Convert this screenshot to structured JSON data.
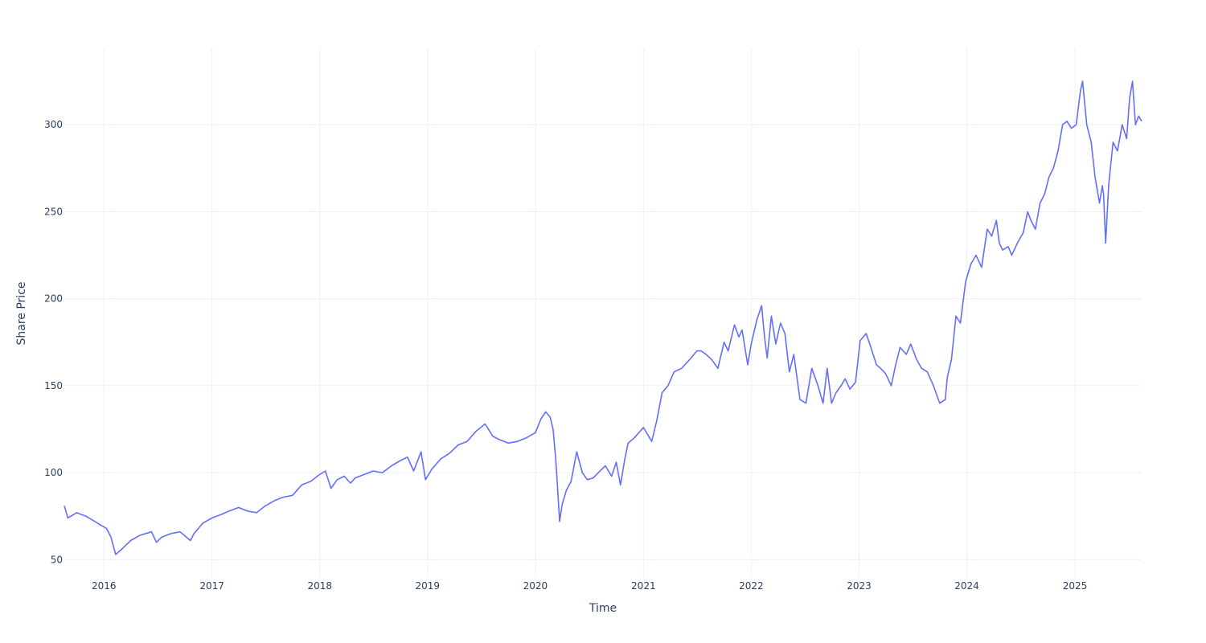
{
  "chart_data": {
    "type": "line",
    "title": "",
    "xlabel": "Time",
    "ylabel": "Share Price",
    "x_ticks": [
      "2016",
      "2017",
      "2018",
      "2019",
      "2020",
      "2021",
      "2022",
      "2023",
      "2024",
      "2025"
    ],
    "y_ticks": [
      "50",
      "100",
      "150",
      "200",
      "250",
      "300"
    ],
    "xlim": [
      "2015-08-20",
      "2025-08-15"
    ],
    "ylim": [
      40,
      344
    ],
    "grid": true,
    "legend": "none",
    "line_color": "#636efa",
    "grid_color": "#ebf0f8",
    "text_color": "#2a3f5f",
    "series": [
      {
        "x": [
          "2015-08-20",
          "2015-09-01",
          "2015-10-01",
          "2015-11-01",
          "2015-12-01",
          "2015-12-20",
          "2016-01-10",
          "2016-01-25",
          "2016-02-10",
          "2016-03-01",
          "2016-04-01",
          "2016-05-01",
          "2016-06-10",
          "2016-06-27",
          "2016-07-15",
          "2016-08-15",
          "2016-09-15",
          "2016-10-20",
          "2016-11-01",
          "2016-12-01",
          "2017-01-01",
          "2017-02-01",
          "2017-03-01",
          "2017-04-01",
          "2017-05-01",
          "2017-06-01",
          "2017-07-01",
          "2017-08-01",
          "2017-09-01",
          "2017-10-01",
          "2017-11-01",
          "2017-12-01",
          "2018-01-01",
          "2018-01-20",
          "2018-02-08",
          "2018-03-01",
          "2018-03-25",
          "2018-04-15",
          "2018-05-01",
          "2018-06-01",
          "2018-07-01",
          "2018-08-01",
          "2018-09-01",
          "2018-10-01",
          "2018-10-25",
          "2018-11-15",
          "2018-12-10",
          "2018-12-25",
          "2019-01-15",
          "2019-02-15",
          "2019-03-15",
          "2019-04-15",
          "2019-05-15",
          "2019-06-15",
          "2019-07-15",
          "2019-08-10",
          "2019-09-01",
          "2019-10-01",
          "2019-11-01",
          "2019-12-01",
          "2020-01-01",
          "2020-01-20",
          "2020-02-05",
          "2020-02-20",
          "2020-03-01",
          "2020-03-10",
          "2020-03-16",
          "2020-03-23",
          "2020-04-01",
          "2020-04-15",
          "2020-05-01",
          "2020-05-20",
          "2020-06-08",
          "2020-06-25",
          "2020-07-15",
          "2020-08-01",
          "2020-08-25",
          "2020-09-15",
          "2020-10-01",
          "2020-10-15",
          "2020-10-30",
          "2020-11-10",
          "2020-12-01",
          "2021-01-01",
          "2021-01-29",
          "2021-02-15",
          "2021-03-05",
          "2021-03-25",
          "2021-04-15",
          "2021-05-10",
          "2021-06-01",
          "2021-07-01",
          "2021-07-15",
          "2021-08-01",
          "2021-08-20",
          "2021-09-10",
          "2021-10-01",
          "2021-10-15",
          "2021-11-05",
          "2021-11-20",
          "2021-12-01",
          "2021-12-20",
          "2022-01-01",
          "2022-01-20",
          "2022-02-05",
          "2022-02-15",
          "2022-02-24",
          "2022-03-10",
          "2022-03-25",
          "2022-04-10",
          "2022-04-25",
          "2022-05-10",
          "2022-05-25",
          "2022-06-15",
          "2022-07-05",
          "2022-07-25",
          "2022-08-15",
          "2022-09-01",
          "2022-09-15",
          "2022-09-30",
          "2022-10-15",
          "2022-11-01",
          "2022-11-15",
          "2022-12-01",
          "2022-12-20",
          "2023-01-05",
          "2023-01-25",
          "2023-02-10",
          "2023-03-01",
          "2023-03-15",
          "2023-04-01",
          "2023-04-20",
          "2023-05-05",
          "2023-05-20",
          "2023-06-10",
          "2023-06-25",
          "2023-07-15",
          "2023-08-01",
          "2023-08-20",
          "2023-09-10",
          "2023-10-01",
          "2023-10-20",
          "2023-10-27",
          "2023-11-10",
          "2023-11-25",
          "2023-12-10",
          "2023-12-28",
          "2024-01-15",
          "2024-02-01",
          "2024-02-20",
          "2024-03-10",
          "2024-03-25",
          "2024-04-10",
          "2024-04-20",
          "2024-05-01",
          "2024-05-20",
          "2024-06-01",
          "2024-06-20",
          "2024-07-10",
          "2024-07-25",
          "2024-08-05",
          "2024-08-20",
          "2024-09-05",
          "2024-09-20",
          "2024-10-05",
          "2024-10-20",
          "2024-11-05",
          "2024-11-20",
          "2024-12-05",
          "2024-12-20",
          "2025-01-05",
          "2025-01-20",
          "2025-01-27",
          "2025-02-10",
          "2025-02-25",
          "2025-03-10",
          "2025-03-25",
          "2025-04-04",
          "2025-04-08",
          "2025-04-15",
          "2025-04-25",
          "2025-05-10",
          "2025-05-25",
          "2025-06-10",
          "2025-06-25",
          "2025-07-05",
          "2025-07-15",
          "2025-07-25",
          "2025-08-05",
          "2025-08-15"
        ],
        "y": [
          81,
          74,
          77,
          75,
          72,
          70,
          68,
          63,
          53,
          56,
          61,
          64,
          66,
          60,
          63,
          65,
          66,
          61,
          65,
          71,
          74,
          76,
          78,
          80,
          78,
          77,
          81,
          84,
          86,
          87,
          93,
          95,
          99,
          101,
          91,
          96,
          98,
          94,
          97,
          99,
          101,
          100,
          104,
          107,
          109,
          101,
          112,
          96,
          102,
          108,
          111,
          116,
          118,
          124,
          128,
          121,
          119,
          117,
          118,
          120,
          123,
          131,
          135,
          132,
          125,
          108,
          92,
          72,
          82,
          90,
          95,
          112,
          100,
          96,
          97,
          100,
          104,
          98,
          106,
          93,
          108,
          117,
          120,
          126,
          118,
          130,
          146,
          150,
          158,
          160,
          164,
          170,
          170,
          168,
          165,
          160,
          175,
          170,
          185,
          178,
          182,
          162,
          174,
          188,
          196,
          178,
          166,
          190,
          174,
          186,
          180,
          158,
          168,
          142,
          140,
          160,
          150,
          140,
          160,
          140,
          146,
          150,
          154,
          148,
          152,
          176,
          180,
          172,
          162,
          160,
          157,
          150,
          162,
          172,
          168,
          174,
          165,
          160,
          158,
          150,
          140,
          142,
          155,
          165,
          190,
          186,
          210,
          220,
          225,
          218,
          240,
          236,
          245,
          232,
          228,
          230,
          225,
          232,
          238,
          250,
          245,
          240,
          255,
          260,
          270,
          275,
          285,
          300,
          302,
          298,
          300,
          320,
          325,
          300,
          290,
          270,
          255,
          265,
          260,
          232,
          265,
          290,
          285,
          300,
          292,
          315,
          325,
          300,
          305,
          302
        ]
      }
    ]
  }
}
